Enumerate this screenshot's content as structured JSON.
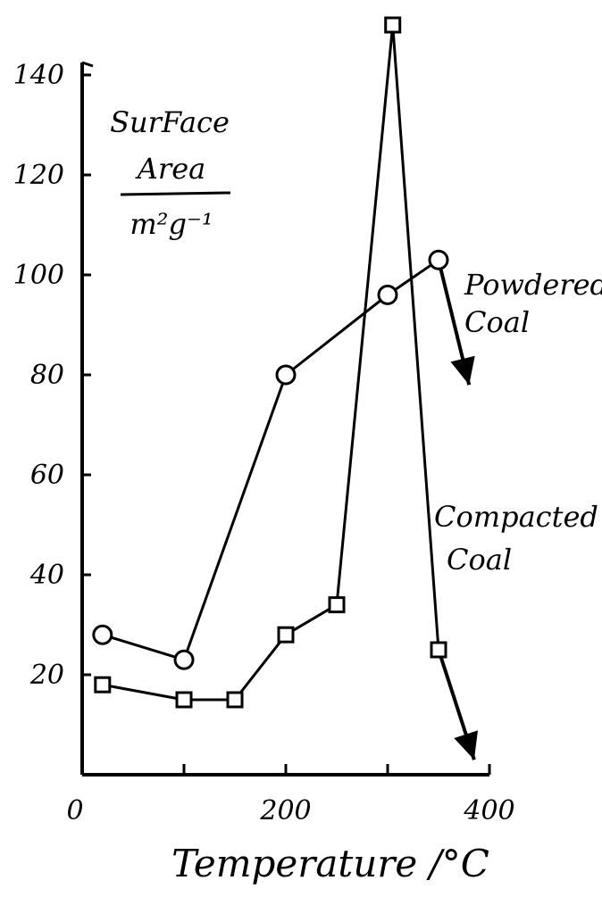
{
  "chart_data": {
    "type": "line",
    "title": "",
    "xlabel": "Temperature /°C",
    "ylabel": {
      "line1": "SurFace",
      "line2": "Area",
      "unit": "m²g⁻¹"
    },
    "xlim": [
      0,
      400
    ],
    "ylim": [
      0,
      150
    ],
    "x_ticks": [
      "0",
      "200",
      "400"
    ],
    "y_ticks": [
      "20",
      "40",
      "60",
      "80",
      "100",
      "120",
      "140"
    ],
    "grid": false,
    "series": [
      {
        "name_lines": [
          "Powdered",
          "Coal"
        ],
        "marker": "circle",
        "x": [
          20,
          100,
          200,
          300,
          350
        ],
        "y": [
          28,
          23,
          80,
          96,
          103
        ],
        "trend_to": [
          380,
          78
        ]
      },
      {
        "name_lines": [
          "Compacted",
          "Coal"
        ],
        "marker": "square",
        "x": [
          20,
          100,
          150,
          200,
          250,
          305,
          350
        ],
        "y": [
          18,
          15,
          15,
          28,
          34,
          150,
          25
        ],
        "trend_to": [
          385,
          3
        ]
      }
    ],
    "colors": {
      "ink": "#000000",
      "background": "#ffffff"
    }
  }
}
